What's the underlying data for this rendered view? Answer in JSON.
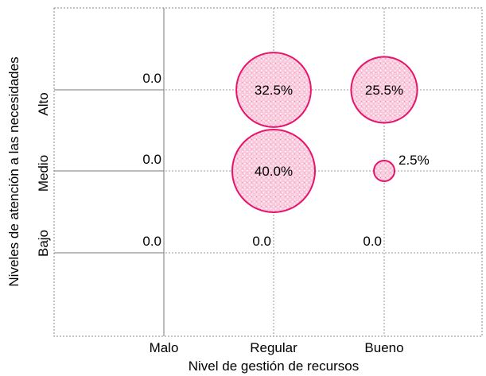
{
  "chart_data": {
    "type": "bubble",
    "title": "",
    "xlabel": "Nivel de gestión de recursos",
    "ylabel": "Niveles de atención  a las necesidades",
    "x_categories": [
      "Malo",
      "Regular",
      "Bueno"
    ],
    "y_categories": [
      "Bajo",
      "Medio",
      "Alto"
    ],
    "grid": true,
    "bubble_fill": "#f7bfd7",
    "bubble_stroke": "#e8146c",
    "points": [
      {
        "x": "Malo",
        "y": "Alto",
        "value": 0.0,
        "label": "0.0"
      },
      {
        "x": "Malo",
        "y": "Medio",
        "value": 0.0,
        "label": "0.0"
      },
      {
        "x": "Malo",
        "y": "Bajo",
        "value": 0.0,
        "label": "0.0"
      },
      {
        "x": "Regular",
        "y": "Alto",
        "value": 32.5,
        "label": "32.5%"
      },
      {
        "x": "Regular",
        "y": "Medio",
        "value": 40.0,
        "label": "40.0%"
      },
      {
        "x": "Regular",
        "y": "Bajo",
        "value": 0.0,
        "label": "0.0"
      },
      {
        "x": "Bueno",
        "y": "Alto",
        "value": 25.5,
        "label": "25.5%"
      },
      {
        "x": "Bueno",
        "y": "Medio",
        "value": 2.5,
        "label": "2.5%"
      },
      {
        "x": "Bueno",
        "y": "Bajo",
        "value": 0.0,
        "label": "0.0"
      }
    ]
  }
}
